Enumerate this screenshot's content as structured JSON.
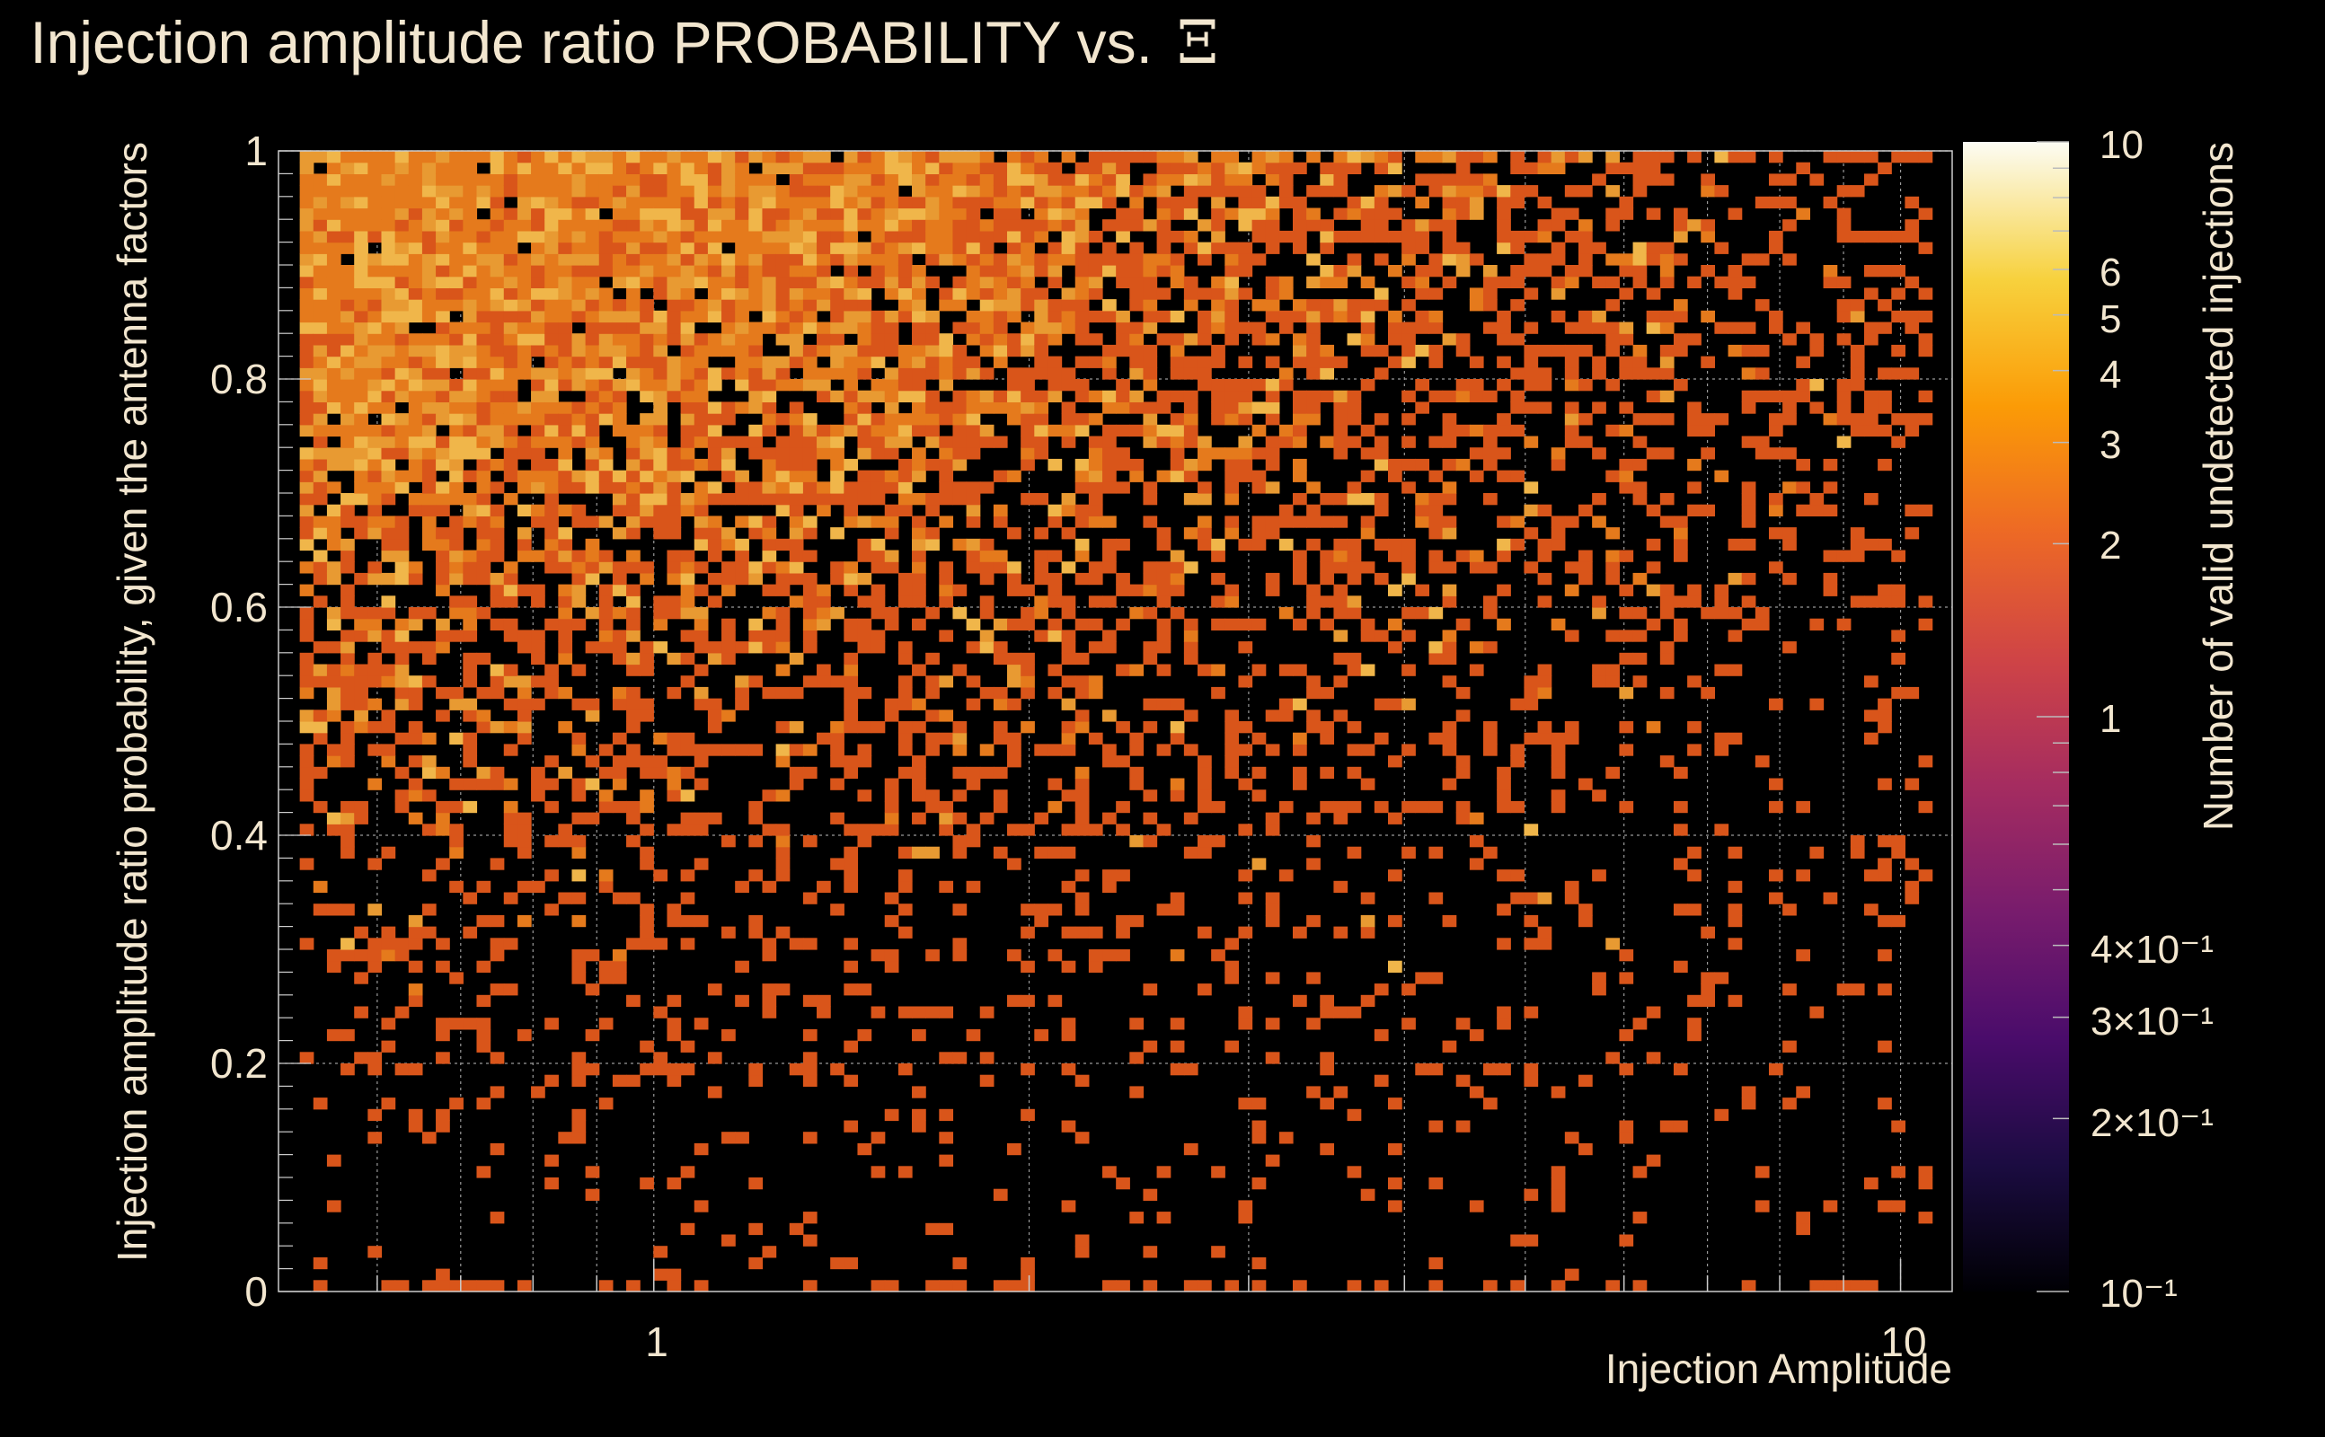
{
  "chart_data": {
    "type": "heatmap",
    "title": "Injection amplitude ratio PROBABILITY vs.",
    "title_symbol": "Ξ",
    "xlabel": "Injection Amplitude",
    "ylabel": "Injection amplitude ratio probability, given the antenna factors",
    "zlabel": "Number of valid undetected injections",
    "x_scale": "log",
    "xlim": [
      0.5,
      11
    ],
    "ylim": [
      0,
      1
    ],
    "z_scale": "log",
    "zlim": [
      0.1,
      10
    ],
    "x_ticks": [
      "1",
      "10"
    ],
    "y_ticks": [
      "0",
      "0.2",
      "0.4",
      "0.6",
      "0.8",
      "1"
    ],
    "z_ticks": [
      "10",
      "6",
      "5",
      "4",
      "3",
      "2",
      "1",
      "4×10⁻¹",
      "3×10⁻¹",
      "2×10⁻¹",
      "10⁻¹"
    ],
    "grid": true,
    "colormap": [
      "#000004",
      "#1b0c41",
      "#4a0c6b",
      "#781c6d",
      "#a52c60",
      "#cf4446",
      "#ed6925",
      "#fb9b06",
      "#f7d13d",
      "#fcffa4"
    ],
    "background_color": "#000000",
    "text_color": "#f2e6cf",
    "x_bins": 120,
    "y_bins": 100,
    "description": "2D histogram: counts (1–6) densest at low amplitude and high probability, thinning toward high amplitude and low probability"
  }
}
